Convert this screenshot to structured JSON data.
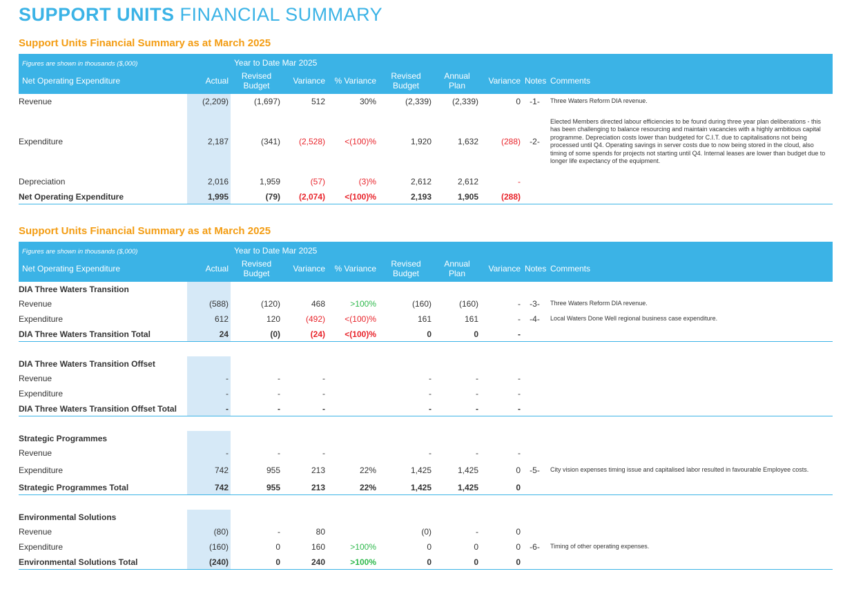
{
  "page_title": {
    "bold": "SUPPORT UNITS",
    "light": "FINANCIAL SUMMARY"
  },
  "colors": {
    "accent": "#3bb3e6",
    "heading": "#f39c12",
    "negative": "#e8232a",
    "positive": "#2db84b",
    "actual_col": "#d6e9f7"
  },
  "header": {
    "note": "Figures are shown in thousands ($,000)",
    "ytd": "Year to Date Mar 2025",
    "col_label": "Net Operating Expenditure",
    "actual": "Actual",
    "revised_budget_1": "Revised",
    "revised_budget_2": "Budget",
    "variance": "Variance",
    "pct_variance": "% Variance",
    "annual_plan_1": "Annual",
    "annual_plan_2": "Plan",
    "notes": "Notes",
    "comments": "Comments"
  },
  "table1": {
    "title": "Support Units Financial Summary as at March 2025",
    "rows": [
      {
        "label": "Revenue",
        "actual": "(2,209)",
        "rev_budget": "(1,697)",
        "variance": "512",
        "pct": "30%",
        "ann_rev_budget": "(2,339)",
        "annual_plan": "(2,339)",
        "ann_variance": "0",
        "note": "-1-",
        "comment": "Three Waters Reform DIA revenue."
      },
      {
        "label": "Expenditure",
        "actual": "2,187",
        "rev_budget": "(341)",
        "variance": "(2,528)",
        "pct": "<(100)%",
        "ann_rev_budget": "1,920",
        "annual_plan": "1,632",
        "ann_variance": "(288)",
        "note": "-2-",
        "comment": "Elected Members directed labour efficiencies to be found during three year plan deliberations - this has been challenging to balance resourcing and maintain vacancies with a highly ambitious capital programme. Depreciation costs lower than budgeted for C.I.T. due to capitalisations not being processed until Q4. Operating savings in server costs due to now being stored in the cloud, also timing of some spends for projects not starting until Q4. Internal leases are lower than budget due to longer life expectancy of the equipment."
      },
      {
        "label": "Depreciation",
        "actual": "2,016",
        "rev_budget": "1,959",
        "variance": "(57)",
        "pct": "(3)%",
        "ann_rev_budget": "2,612",
        "annual_plan": "2,612",
        "ann_variance": "-",
        "note": "",
        "comment": ""
      }
    ],
    "total": {
      "label": "Net Operating Expenditure",
      "actual": "1,995",
      "rev_budget": "(79)",
      "variance": "(2,074)",
      "pct": "<(100)%",
      "ann_rev_budget": "2,193",
      "annual_plan": "1,905",
      "ann_variance": "(288)"
    }
  },
  "table2": {
    "title": "Support Units Financial Summary as at March 2025",
    "groups": [
      {
        "name": "DIA Three Waters Transition",
        "rows": [
          {
            "label": "Revenue",
            "actual": "(588)",
            "rev_budget": "(120)",
            "variance": "468",
            "pct": ">100%",
            "ann_rev_budget": "(160)",
            "annual_plan": "(160)",
            "ann_variance": "-",
            "note": "-3-",
            "comment": "Three Waters Reform DIA revenue."
          },
          {
            "label": "Expenditure",
            "actual": "612",
            "rev_budget": "120",
            "variance": "(492)",
            "pct": "<(100)%",
            "ann_rev_budget": "161",
            "annual_plan": "161",
            "ann_variance": "-",
            "note": "-4-",
            "comment": "Local Waters Done Well regional business case expenditure."
          }
        ],
        "total": {
          "label": "DIA Three Waters Transition Total",
          "actual": "24",
          "rev_budget": "(0)",
          "variance": "(24)",
          "pct": "<(100)%",
          "ann_rev_budget": "0",
          "annual_plan": "0",
          "ann_variance": "-"
        }
      },
      {
        "name": "DIA Three Waters Transition Offset",
        "rows": [
          {
            "label": "Revenue",
            "actual": "-",
            "rev_budget": "-",
            "variance": "-",
            "pct": "",
            "ann_rev_budget": "-",
            "annual_plan": "-",
            "ann_variance": "-",
            "note": "",
            "comment": ""
          },
          {
            "label": "Expenditure",
            "actual": "-",
            "rev_budget": "-",
            "variance": "-",
            "pct": "",
            "ann_rev_budget": "-",
            "annual_plan": "-",
            "ann_variance": "-",
            "note": "",
            "comment": ""
          }
        ],
        "total": {
          "label": "DIA Three Waters Transition Offset Total",
          "actual": "-",
          "rev_budget": "-",
          "variance": "-",
          "pct": "",
          "ann_rev_budget": "-",
          "annual_plan": "-",
          "ann_variance": "-"
        }
      },
      {
        "name": "Strategic Programmes",
        "rows": [
          {
            "label": "Revenue",
            "actual": "-",
            "rev_budget": "-",
            "variance": "-",
            "pct": "",
            "ann_rev_budget": "-",
            "annual_plan": "-",
            "ann_variance": "-",
            "note": "",
            "comment": ""
          },
          {
            "label": "Expenditure",
            "actual": "742",
            "rev_budget": "955",
            "variance": "213",
            "pct": "22%",
            "ann_rev_budget": "1,425",
            "annual_plan": "1,425",
            "ann_variance": "0",
            "note": "-5-",
            "comment": "City vision expenses timing issue and capitalised labor resulted in favourable Employee costs."
          }
        ],
        "total": {
          "label": "Strategic Programmes Total",
          "actual": "742",
          "rev_budget": "955",
          "variance": "213",
          "pct": "22%",
          "ann_rev_budget": "1,425",
          "annual_plan": "1,425",
          "ann_variance": "0"
        }
      },
      {
        "name": "Environmental Solutions",
        "rows": [
          {
            "label": "Revenue",
            "actual": "(80)",
            "rev_budget": "-",
            "variance": "80",
            "pct": "",
            "ann_rev_budget": "(0)",
            "annual_plan": "-",
            "ann_variance": "0",
            "note": "",
            "comment": ""
          },
          {
            "label": "Expenditure",
            "actual": "(160)",
            "rev_budget": "0",
            "variance": "160",
            "pct": ">100%",
            "ann_rev_budget": "0",
            "annual_plan": "0",
            "ann_variance": "0",
            "note": "-6-",
            "comment": "Timing of other operating expenses."
          }
        ],
        "total": {
          "label": "Environmental Solutions Total",
          "actual": "(240)",
          "rev_budget": "0",
          "variance": "240",
          "pct": ">100%",
          "ann_rev_budget": "0",
          "annual_plan": "0",
          "ann_variance": "0"
        }
      }
    ]
  }
}
